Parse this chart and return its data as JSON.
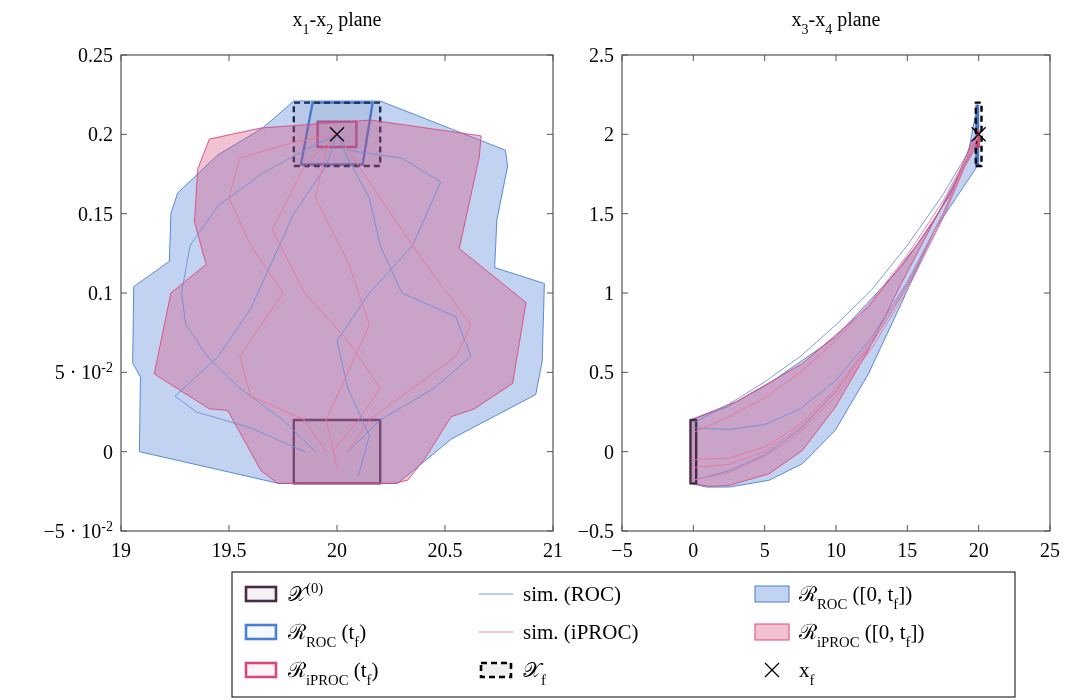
{
  "chart_data": [
    {
      "type": "line",
      "title": "x$_{1}$-x$_{2}$ plane",
      "xlim": [
        19,
        21
      ],
      "xticks": [
        19,
        19.5,
        20,
        20.5,
        21
      ],
      "ylim": [
        -0.05,
        0.25
      ],
      "yticks": [
        {
          "value": -0.05,
          "label": "−5 · 10$^{-2}$"
        },
        0,
        {
          "value": 0.05,
          "label": "5 · 10$^{-2}$"
        },
        0.1,
        0.15,
        0.2,
        0.25
      ],
      "grid": false,
      "legend": "bottom",
      "series": [
        {
          "type": "area",
          "name": "𝒳$^{(0)}$",
          "color": "#4a2a45",
          "x": [
            19.8,
            20.2,
            20.2,
            19.8
          ],
          "values": [
            -0.02,
            -0.02,
            0.02,
            0.02
          ]
        },
        {
          "type": "area",
          "name": "ℛ$_{ROC}$ (t$_{f}$)",
          "color": "#4a7fd4",
          "x": [
            19.887,
            20.165,
            20.119,
            19.833
          ],
          "values": [
            0.22,
            0.22,
            0.181,
            0.181
          ]
        },
        {
          "type": "area",
          "name": "ℛ$_{iPROC}$ (t$_{f}$)",
          "color": "#d9487a",
          "x": [
            19.91,
            20.09,
            20.09,
            19.91
          ],
          "values": [
            0.192,
            0.192,
            0.208,
            0.208
          ]
        },
        {
          "name": "sim. (ROC)",
          "color": "#6f8fd6",
          "x": [
            19.9,
            19.75,
            19.55,
            19.4,
            19.3,
            19.28,
            19.32,
            19.45,
            19.65,
            19.85,
            20.0
          ],
          "values": [
            0.0,
            0.02,
            0.04,
            0.06,
            0.08,
            0.1,
            0.13,
            0.155,
            0.175,
            0.19,
            0.2
          ]
        },
        {
          "name": "sim. (iPROC)",
          "color": "#e8779a",
          "x": [
            19.95,
            19.85,
            19.6,
            19.55,
            19.65,
            19.75,
            19.6,
            19.5,
            19.55,
            19.8,
            20.0
          ],
          "values": [
            0.0,
            0.02,
            0.035,
            0.06,
            0.08,
            0.1,
            0.13,
            0.16,
            0.185,
            0.195,
            0.2
          ]
        },
        {
          "type": "area",
          "name": "𝒳$_{f}$",
          "color": "#000000",
          "line_style": "dashed",
          "x": [
            19.8,
            20.2,
            20.2,
            19.8
          ],
          "values": [
            0.18,
            0.18,
            0.22,
            0.22
          ]
        },
        {
          "type": "area",
          "name": "ℛ$_{ROC}$ ([0, t$_{f}$])",
          "color": "#4a7fd4",
          "x": [
            19.085,
            19.09,
            19.054,
            19.059,
            19.224,
            19.231,
            19.262,
            19.448,
            19.656,
            19.8,
            20.2,
            20.78,
            20.79,
            20.74,
            20.73,
            20.96,
            20.95,
            20.92,
            20.53,
            20.37,
            20.28,
            19.73
          ],
          "values": [
            0.0,
            0.047,
            0.056,
            0.104,
            0.12,
            0.15,
            0.163,
            0.187,
            0.204,
            0.221,
            0.221,
            0.19,
            0.18,
            0.146,
            0.116,
            0.106,
            0.057,
            0.036,
            0.008,
            -0.01,
            -0.02,
            -0.02
          ]
        },
        {
          "type": "area",
          "name": "ℛ$_{iPROC}$ ([0, t$_{f}$])",
          "color": "#d9487a",
          "x": [
            19.409,
            19.648,
            20.157,
            20.667,
            20.659,
            20.566,
            20.875,
            20.813,
            20.636,
            20.528,
            20.404,
            20.327,
            20.265,
            19.725,
            19.648,
            19.494,
            19.409,
            19.154,
            19.231,
            19.394,
            19.34,
            19.355
          ],
          "values": [
            0.197,
            0.204,
            0.209,
            0.199,
            0.186,
            0.128,
            0.094,
            0.043,
            0.027,
            0.022,
            -0.005,
            -0.018,
            -0.02,
            -0.02,
            -0.012,
            0.026,
            0.027,
            0.049,
            0.1,
            0.118,
            0.145,
            0.178
          ]
        },
        {
          "type": "scatter",
          "name": "x$_{f}$",
          "color": "#000000",
          "marker": "cross",
          "x": [
            20
          ],
          "values": [
            0.2
          ]
        },
        {
          "color": "#6f8fd6",
          "x": [
            20.05,
            20.2,
            20.45,
            20.62,
            20.55,
            20.3,
            20.2,
            20.15,
            20.05,
            20.0
          ],
          "values": [
            0.0,
            0.02,
            0.04,
            0.06,
            0.085,
            0.1,
            0.13,
            0.16,
            0.185,
            0.2
          ]
        },
        {
          "color": "#6f8fd6",
          "x": [
            20.1,
            20.15,
            20.05,
            20.0,
            20.15,
            20.35,
            20.48,
            20.3,
            20.05,
            20.0
          ],
          "values": [
            -0.015,
            0.01,
            0.04,
            0.07,
            0.1,
            0.13,
            0.17,
            0.185,
            0.19,
            0.2
          ]
        },
        {
          "color": "#6f8fd6",
          "x": [
            19.85,
            19.6,
            19.35,
            19.25,
            19.45,
            19.6,
            19.7,
            19.8,
            19.95,
            20.0
          ],
          "values": [
            0.0,
            0.015,
            0.025,
            0.035,
            0.06,
            0.09,
            0.12,
            0.15,
            0.18,
            0.2
          ]
        },
        {
          "color": "#e8779a",
          "x": [
            20.05,
            20.15,
            20.35,
            20.55,
            20.62,
            20.4,
            20.2,
            20.05,
            20.0
          ],
          "values": [
            0.0,
            0.02,
            0.04,
            0.06,
            0.08,
            0.12,
            0.16,
            0.19,
            0.2
          ]
        },
        {
          "color": "#e8779a",
          "x": [
            20.0,
            19.95,
            20.05,
            20.15,
            20.05,
            19.9,
            19.95,
            20.0
          ],
          "values": [
            -0.01,
            0.02,
            0.05,
            0.08,
            0.12,
            0.16,
            0.19,
            0.2
          ]
        },
        {
          "color": "#e8779a",
          "x": [
            19.98,
            20.1,
            20.2,
            20.05,
            19.85,
            19.7,
            19.85,
            20.0
          ],
          "values": [
            0.0,
            0.02,
            0.04,
            0.07,
            0.1,
            0.14,
            0.18,
            0.2
          ]
        }
      ]
    },
    {
      "type": "line",
      "title": "x$_{3}$-x$_{4}$ plane",
      "xlim": [
        -5,
        25
      ],
      "xticks": [
        -5,
        0,
        5,
        10,
        15,
        20,
        25
      ],
      "ylim": [
        -0.5,
        2.5
      ],
      "yticks": [
        -0.5,
        0,
        0.5,
        1,
        1.5,
        2,
        2.5
      ],
      "grid": false,
      "series": [
        {
          "type": "area",
          "color": "#4a7fd4",
          "x": [
            -0.2,
            2.31,
            5.32,
            9.95,
            14.58,
            16.9,
            19.2,
            19.86,
            19.8,
            16.9,
            14.58,
            12.27,
            9.95,
            7.64,
            5.32,
            2.55,
            0.93,
            -0.2
          ],
          "values": [
            0.2,
            0.28,
            0.43,
            0.72,
            1.165,
            1.46,
            1.85,
            2.16,
            1.785,
            1.396,
            0.934,
            0.49,
            0.135,
            -0.076,
            -0.18,
            -0.223,
            -0.223,
            -0.2
          ]
        },
        {
          "type": "area",
          "color": "#d9487a",
          "x": [
            -0.2,
            3.01,
            7.64,
            12.27,
            15.74,
            18.06,
            19.56,
            19.79,
            19.68,
            16.9,
            14.58,
            12.27,
            9.95,
            7.64,
            5.32,
            2.55,
            1.16,
            -0.2
          ],
          "values": [
            0.2,
            0.315,
            0.555,
            0.912,
            1.312,
            1.627,
            1.964,
            1.985,
            1.9,
            1.459,
            1.06,
            0.64,
            0.28,
            0.008,
            -0.139,
            -0.212,
            -0.219,
            -0.2
          ]
        },
        {
          "color": "#6f8fd6",
          "x": [
            0,
            2.5,
            5,
            7.5,
            10,
            12.5,
            15,
            17.5,
            20
          ],
          "values": [
            0.15,
            0.14,
            0.17,
            0.27,
            0.45,
            0.72,
            1.07,
            1.5,
            2.0
          ]
        },
        {
          "color": "#6f8fd6",
          "x": [
            0,
            2.5,
            5,
            7.5,
            10,
            12.5,
            15,
            17.5,
            20
          ],
          "values": [
            0.18,
            0.3,
            0.44,
            0.6,
            0.8,
            1.02,
            1.3,
            1.62,
            2.0
          ]
        },
        {
          "color": "#6f8fd6",
          "x": [
            0,
            2.5,
            5,
            7.5,
            10,
            12.5,
            15,
            17.5,
            20
          ],
          "values": [
            -0.18,
            -0.12,
            -0.02,
            0.14,
            0.38,
            0.68,
            1.04,
            1.48,
            2.0
          ]
        },
        {
          "color": "#e8779a",
          "x": [
            0,
            2.5,
            5,
            7.5,
            10,
            12.5,
            15,
            17.5,
            20
          ],
          "values": [
            -0.05,
            -0.04,
            0.03,
            0.17,
            0.4,
            0.7,
            1.06,
            1.5,
            2.0
          ]
        },
        {
          "color": "#e8779a",
          "x": [
            0,
            2.5,
            5,
            7.5,
            10,
            12.5,
            15,
            17.5,
            20
          ],
          "values": [
            -0.18,
            -0.13,
            -0.03,
            0.12,
            0.35,
            0.65,
            1.02,
            1.47,
            2.0
          ]
        },
        {
          "color": "#e8779a",
          "x": [
            0,
            2.5,
            5,
            7.5,
            10,
            12.5,
            15,
            17.5,
            20
          ],
          "values": [
            0.12,
            0.22,
            0.34,
            0.5,
            0.7,
            0.95,
            1.24,
            1.58,
            2.0
          ]
        },
        {
          "color": "#e8779a",
          "x": [
            0,
            2.5,
            5,
            7.5,
            10,
            12.5,
            15,
            17.5,
            20
          ],
          "values": [
            -0.1,
            -0.08,
            0.0,
            0.15,
            0.38,
            0.68,
            1.05,
            1.5,
            2.0
          ]
        },
        {
          "type": "area",
          "color": "#4a2a45",
          "x": [
            -0.2,
            0.2,
            0.2,
            -0.2
          ],
          "values": [
            -0.2,
            -0.2,
            0.2,
            0.2
          ]
        },
        {
          "type": "area",
          "color": "#4a7fd4",
          "x": [
            19.85,
            19.95,
            19.95,
            19.85
          ],
          "values": [
            1.8,
            1.8,
            2.18,
            2.18
          ]
        },
        {
          "type": "area",
          "color": "#d9487a",
          "x": [
            19.9,
            20.0,
            20.0,
            19.9
          ],
          "values": [
            1.92,
            1.92,
            2.02,
            2.02
          ]
        },
        {
          "type": "area",
          "color": "#000000",
          "line_style": "dashed",
          "x": [
            19.8,
            20.2,
            20.2,
            19.8
          ],
          "values": [
            1.8,
            1.8,
            2.2,
            2.2
          ]
        },
        {
          "type": "scatter",
          "color": "#000000",
          "marker": "cross",
          "x": [
            20
          ],
          "values": [
            2.0
          ]
        }
      ]
    }
  ]
}
